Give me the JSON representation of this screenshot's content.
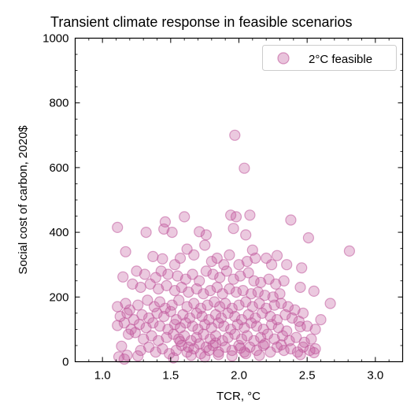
{
  "chart_data": {
    "type": "scatter",
    "title": "Transient climate response in feasible scenarios",
    "xlabel": "TCR, °C",
    "ylabel": "Social cost of carbon, 2020$",
    "xlim": [
      0.8,
      3.2
    ],
    "ylim": [
      0,
      1000
    ],
    "x_ticks": [
      "1.0",
      "1.5",
      "2.0",
      "2.5",
      "3.0"
    ],
    "y_ticks": [
      "0",
      "200",
      "400",
      "600",
      "800",
      "1000"
    ],
    "grid": false,
    "legend_position": "top-right",
    "marker_color": "#c0569a",
    "series": [
      {
        "name": "2°C feasible",
        "points": [
          [
            1.97,
            700
          ],
          [
            2.04,
            598
          ],
          [
            1.6,
            448
          ],
          [
            1.94,
            453
          ],
          [
            1.98,
            448
          ],
          [
            2.08,
            453
          ],
          [
            1.11,
            415
          ],
          [
            1.46,
            432
          ],
          [
            1.45,
            410
          ],
          [
            1.51,
            400
          ],
          [
            1.32,
            400
          ],
          [
            1.71,
            402
          ],
          [
            1.76,
            392
          ],
          [
            1.96,
            412
          ],
          [
            2.05,
            392
          ],
          [
            2.1,
            345
          ],
          [
            2.38,
            438
          ],
          [
            2.51,
            383
          ],
          [
            2.81,
            342
          ],
          [
            1.17,
            340
          ],
          [
            1.37,
            325
          ],
          [
            1.44,
            318
          ],
          [
            1.53,
            300
          ],
          [
            1.57,
            320
          ],
          [
            1.62,
            348
          ],
          [
            1.67,
            330
          ],
          [
            1.75,
            360
          ],
          [
            1.8,
            310
          ],
          [
            1.84,
            320
          ],
          [
            1.89,
            300
          ],
          [
            1.93,
            330
          ],
          [
            2.0,
            300
          ],
          [
            2.06,
            310
          ],
          [
            2.12,
            320
          ],
          [
            2.2,
            320
          ],
          [
            2.24,
            300
          ],
          [
            2.28,
            328
          ],
          [
            2.35,
            300
          ],
          [
            2.46,
            290
          ],
          [
            1.25,
            280
          ],
          [
            1.31,
            270
          ],
          [
            1.39,
            260
          ],
          [
            1.43,
            280
          ],
          [
            1.48,
            270
          ],
          [
            1.55,
            265
          ],
          [
            1.61,
            255
          ],
          [
            1.66,
            270
          ],
          [
            1.71,
            250
          ],
          [
            1.76,
            280
          ],
          [
            1.81,
            270
          ],
          [
            1.86,
            260
          ],
          [
            1.91,
            280
          ],
          [
            1.96,
            255
          ],
          [
            2.01,
            265
          ],
          [
            2.07,
            275
          ],
          [
            2.11,
            250
          ],
          [
            2.16,
            245
          ],
          [
            2.22,
            255
          ],
          [
            2.27,
            240
          ],
          [
            2.33,
            250
          ],
          [
            2.45,
            230
          ],
          [
            1.15,
            262
          ],
          [
            1.22,
            240
          ],
          [
            1.28,
            230
          ],
          [
            1.35,
            240
          ],
          [
            1.41,
            225
          ],
          [
            1.47,
            235
          ],
          [
            1.53,
            220
          ],
          [
            1.58,
            230
          ],
          [
            1.63,
            215
          ],
          [
            1.69,
            225
          ],
          [
            1.74,
            210
          ],
          [
            1.79,
            220
          ],
          [
            1.84,
            230
          ],
          [
            1.88,
            210
          ],
          [
            1.93,
            225
          ],
          [
            1.98,
            215
          ],
          [
            2.03,
            220
          ],
          [
            2.09,
            210
          ],
          [
            2.14,
            215
          ],
          [
            2.19,
            205
          ],
          [
            2.25,
            200
          ],
          [
            2.3,
            210
          ],
          [
            2.55,
            218
          ],
          [
            2.67,
            180
          ],
          [
            1.11,
            170
          ],
          [
            1.17,
            180
          ],
          [
            1.2,
            160
          ],
          [
            1.26,
            175
          ],
          [
            1.33,
            190
          ],
          [
            1.38,
            170
          ],
          [
            1.42,
            185
          ],
          [
            1.46,
            165
          ],
          [
            1.51,
            175
          ],
          [
            1.56,
            190
          ],
          [
            1.62,
            170
          ],
          [
            1.67,
            180
          ],
          [
            1.72,
            165
          ],
          [
            1.77,
            175
          ],
          [
            1.82,
            185
          ],
          [
            1.86,
            170
          ],
          [
            1.9,
            180
          ],
          [
            1.95,
            165
          ],
          [
            2.0,
            175
          ],
          [
            2.05,
            185
          ],
          [
            2.1,
            170
          ],
          [
            2.15,
            180
          ],
          [
            2.2,
            165
          ],
          [
            2.26,
            175
          ],
          [
            2.31,
            180
          ],
          [
            2.36,
            170
          ],
          [
            2.41,
            160
          ],
          [
            2.47,
            150
          ],
          [
            1.13,
            140
          ],
          [
            1.18,
            150
          ],
          [
            1.23,
            130
          ],
          [
            1.29,
            145
          ],
          [
            1.34,
            135
          ],
          [
            1.4,
            150
          ],
          [
            1.45,
            140
          ],
          [
            1.5,
            155
          ],
          [
            1.54,
            130
          ],
          [
            1.59,
            145
          ],
          [
            1.64,
            135
          ],
          [
            1.69,
            150
          ],
          [
            1.73,
            140
          ],
          [
            1.78,
            130
          ],
          [
            1.83,
            145
          ],
          [
            1.87,
            135
          ],
          [
            1.92,
            150
          ],
          [
            1.97,
            140
          ],
          [
            2.02,
            130
          ],
          [
            2.07,
            145
          ],
          [
            2.12,
            135
          ],
          [
            2.17,
            150
          ],
          [
            2.23,
            140
          ],
          [
            2.28,
            130
          ],
          [
            2.34,
            145
          ],
          [
            2.39,
            135
          ],
          [
            2.44,
            125
          ],
          [
            2.5,
            110
          ],
          [
            2.6,
            130
          ],
          [
            1.11,
            112
          ],
          [
            1.16,
            120
          ],
          [
            1.21,
            100
          ],
          [
            1.27,
            115
          ],
          [
            1.32,
            105
          ],
          [
            1.37,
            120
          ],
          [
            1.42,
            110
          ],
          [
            1.48,
            100
          ],
          [
            1.53,
            115
          ],
          [
            1.57,
            105
          ],
          [
            1.61,
            120
          ],
          [
            1.66,
            110
          ],
          [
            1.7,
            100
          ],
          [
            1.75,
            115
          ],
          [
            1.8,
            105
          ],
          [
            1.85,
            120
          ],
          [
            1.89,
            110
          ],
          [
            1.94,
            100
          ],
          [
            1.99,
            115
          ],
          [
            2.04,
            105
          ],
          [
            2.09,
            120
          ],
          [
            2.13,
            110
          ],
          [
            2.18,
            100
          ],
          [
            2.24,
            115
          ],
          [
            2.29,
            105
          ],
          [
            2.35,
            95
          ],
          [
            2.45,
            108
          ],
          [
            2.56,
            100
          ],
          [
            1.14,
            48
          ],
          [
            1.19,
            85
          ],
          [
            1.24,
            90
          ],
          [
            1.3,
            70
          ],
          [
            1.36,
            80
          ],
          [
            1.41,
            65
          ],
          [
            1.47,
            75
          ],
          [
            1.52,
            85
          ],
          [
            1.56,
            70
          ],
          [
            1.6,
            80
          ],
          [
            1.65,
            65
          ],
          [
            1.69,
            75
          ],
          [
            1.74,
            85
          ],
          [
            1.79,
            70
          ],
          [
            1.83,
            80
          ],
          [
            1.88,
            65
          ],
          [
            1.92,
            75
          ],
          [
            1.97,
            85
          ],
          [
            2.02,
            70
          ],
          [
            2.06,
            80
          ],
          [
            2.11,
            65
          ],
          [
            2.16,
            75
          ],
          [
            2.21,
            85
          ],
          [
            2.26,
            70
          ],
          [
            2.32,
            80
          ],
          [
            2.37,
            65
          ],
          [
            2.42,
            75
          ],
          [
            2.48,
            60
          ],
          [
            2.53,
            70
          ],
          [
            1.12,
            15
          ],
          [
            1.18,
            20
          ],
          [
            1.28,
            35
          ],
          [
            1.34,
            45
          ],
          [
            1.39,
            30
          ],
          [
            1.44,
            40
          ],
          [
            1.49,
            25
          ],
          [
            1.54,
            35
          ],
          [
            1.58,
            50
          ],
          [
            1.62,
            30
          ],
          [
            1.63,
            45
          ],
          [
            1.67,
            40
          ],
          [
            1.71,
            55
          ],
          [
            1.72,
            25
          ],
          [
            1.76,
            45
          ],
          [
            1.78,
            35
          ],
          [
            1.81,
            50
          ],
          [
            1.85,
            30
          ],
          [
            1.9,
            45
          ],
          [
            1.95,
            35
          ],
          [
            2.0,
            50
          ],
          [
            2.04,
            30
          ],
          [
            2.08,
            45
          ],
          [
            2.13,
            35
          ],
          [
            2.18,
            50
          ],
          [
            2.23,
            30
          ],
          [
            2.28,
            45
          ],
          [
            2.33,
            35
          ],
          [
            2.38,
            40
          ],
          [
            2.43,
            30
          ],
          [
            2.47,
            45
          ],
          [
            2.52,
            35
          ],
          [
            2.56,
            40
          ],
          [
            1.16,
            8
          ],
          [
            1.26,
            18
          ],
          [
            1.52,
            12
          ],
          [
            1.65,
            20
          ],
          [
            1.75,
            15
          ],
          [
            1.85,
            22
          ],
          [
            1.95,
            18
          ],
          [
            2.05,
            25
          ],
          [
            2.15,
            20
          ],
          [
            2.45,
            22
          ],
          [
            2.55,
            28
          ],
          [
            1.57,
            62
          ],
          [
            1.83,
            58
          ],
          [
            2.01,
            42
          ],
          [
            2.19,
            55
          ],
          [
            2.31,
            52
          ]
        ]
      }
    ]
  }
}
